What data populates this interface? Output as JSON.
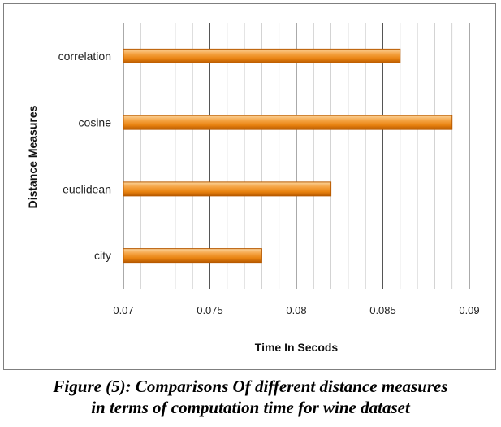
{
  "chart_data": {
    "type": "bar",
    "orientation": "horizontal",
    "categories": [
      "correlation",
      "cosine",
      "euclidean",
      "city"
    ],
    "values": [
      0.086,
      0.089,
      0.082,
      0.078
    ],
    "xlabel": "Time In Secods",
    "ylabel": "Distance Measures",
    "xlim": [
      0.07,
      0.09
    ],
    "xticks": [
      "0.07",
      "0.075",
      "0.08",
      "0.085",
      "0.09"
    ],
    "grid": true,
    "legend": "none",
    "bar_color": "#f28c1a",
    "bar_edge_color": "#b85a00"
  },
  "caption": {
    "line1": "Figure (5): Comparisons Of different distance measures",
    "line2": "in terms of computation time for wine dataset"
  }
}
